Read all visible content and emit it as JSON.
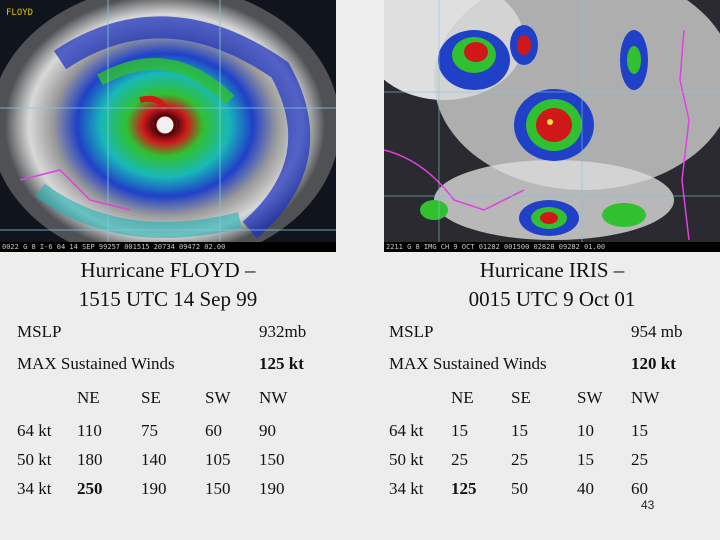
{
  "left": {
    "image_label": "FLOYD",
    "image_strip": "0022 G 8 I-6    04 14 SEP 99257 001515 20734 09472 02.00",
    "caption_line1": "Hurricane FLOYD –",
    "caption_line2": "1515 UTC 14 Sep 99",
    "mslp_label": "MSLP",
    "mslp_value": "932mb",
    "winds_label": "MAX Sustained Winds",
    "winds_value": "125 kt",
    "headers": [
      "NE",
      "SE",
      "SW",
      "NW"
    ],
    "rows": [
      {
        "label": "64 kt",
        "values": [
          "110",
          "75",
          "60",
          "90"
        ]
      },
      {
        "label": "50 kt",
        "values": [
          "180",
          "140",
          "105",
          "150"
        ]
      },
      {
        "label": "34 kt",
        "values": [
          "250",
          "190",
          "150",
          "190"
        ]
      }
    ]
  },
  "right": {
    "image_strip": "2211 G 8 IMG    CH 9 OCT 01282 001500 02828 09282 01.00",
    "caption_line1": "Hurricane IRIS –",
    "caption_line2": "0015 UTC 9 Oct 01",
    "mslp_label": "MSLP",
    "mslp_value": "954 mb",
    "winds_label": "MAX Sustained Winds",
    "winds_value": "120 kt",
    "headers": [
      "NE",
      "SE",
      "SW",
      "NW"
    ],
    "rows": [
      {
        "label": "64 kt",
        "values": [
          "15",
          "15",
          "10",
          "15"
        ]
      },
      {
        "label": "50 kt",
        "values": [
          "25",
          "25",
          "15",
          "25"
        ]
      },
      {
        "label": "34 kt",
        "values": [
          "125",
          "50",
          "40",
          "60"
        ]
      }
    ]
  },
  "page_number": "43"
}
